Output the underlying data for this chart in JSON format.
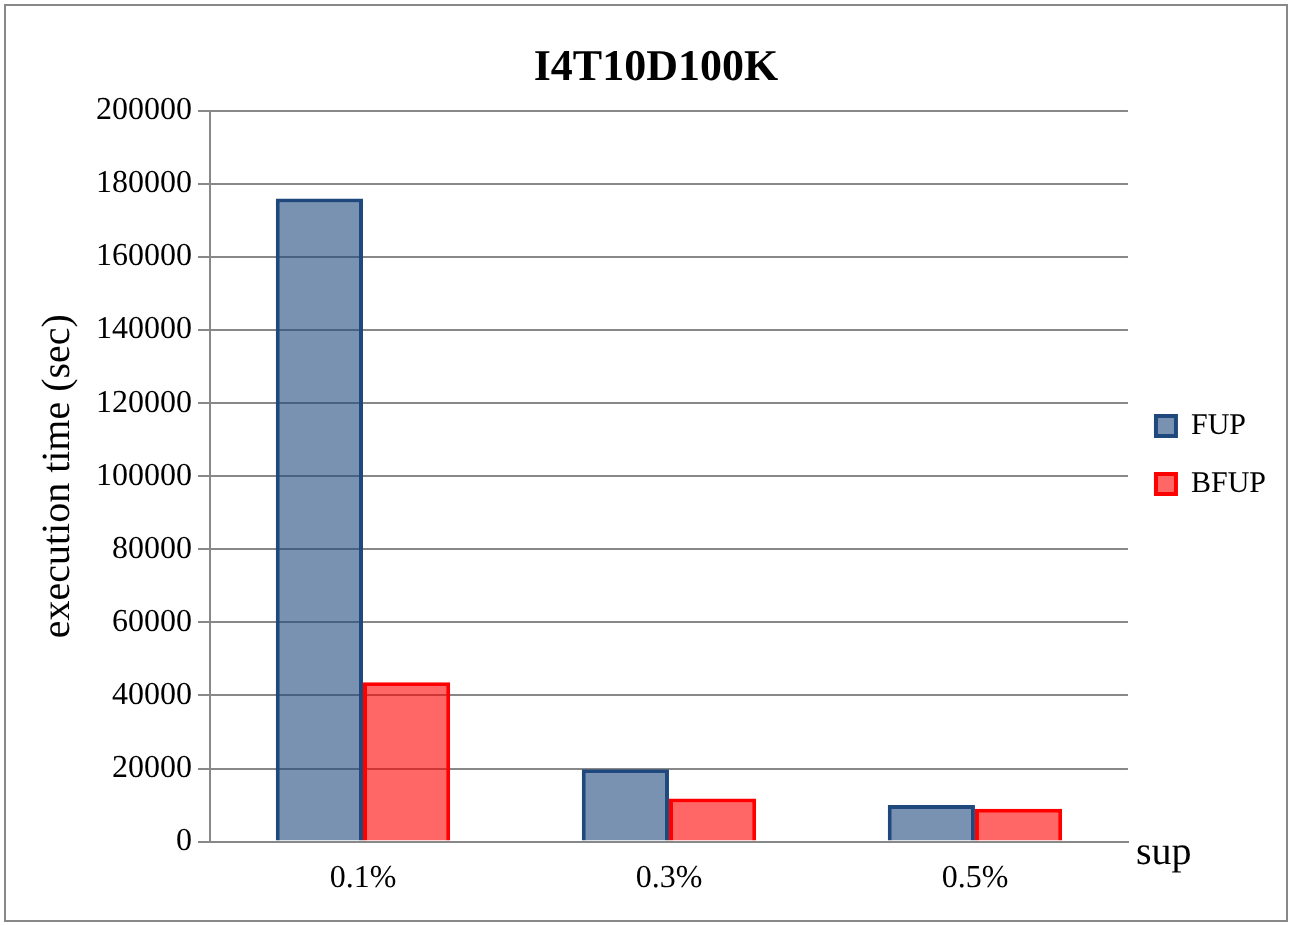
{
  "chart_data": {
    "type": "bar",
    "title": "I4T10D100K",
    "xlabel": "sup",
    "ylabel": "execution time (sec)",
    "categories": [
      "0.1%",
      "0.3%",
      "0.5%"
    ],
    "series": [
      {
        "name": "FUP",
        "color": "#1f497d",
        "values": [
          176000,
          19800,
          10000
        ]
      },
      {
        "name": "BFUP",
        "color": "#ff0000",
        "values": [
          43600,
          11800,
          9000
        ]
      }
    ],
    "ylim": [
      0,
      200000
    ],
    "yticks": [
      0,
      20000,
      40000,
      60000,
      80000,
      100000,
      120000,
      140000,
      160000,
      180000,
      200000
    ],
    "grid": "y",
    "legend": "right"
  }
}
